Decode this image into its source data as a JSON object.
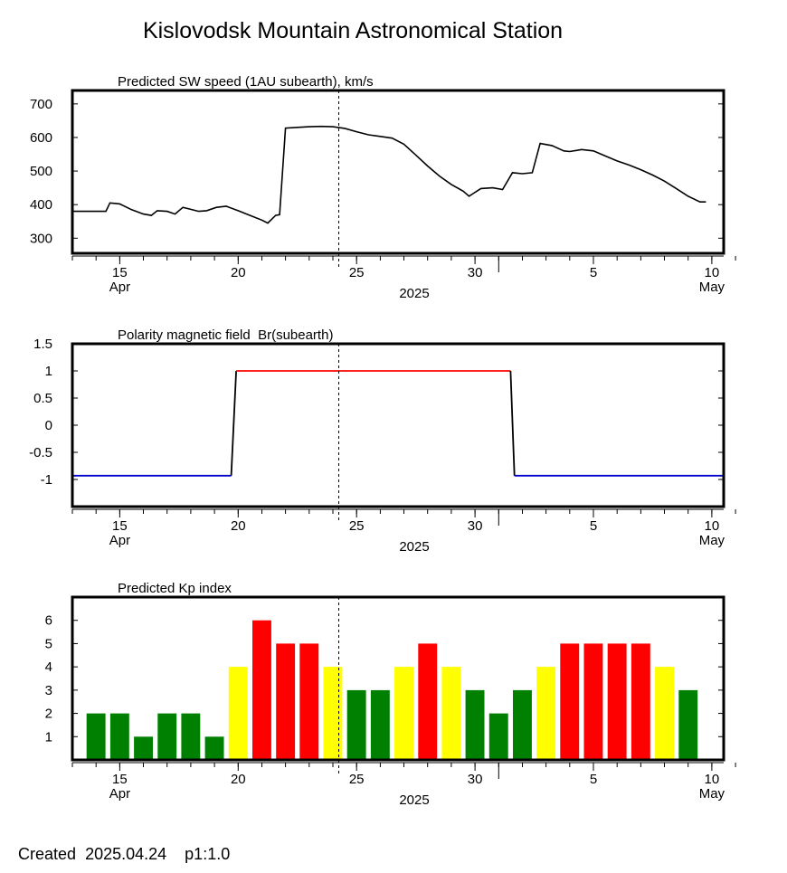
{
  "page": {
    "title": "Kislovodsk Mountain Astronomical Station",
    "footer_label": "Created",
    "footer_date": "2025.04.24",
    "footer_extra": "p1:1.0"
  },
  "colors": {
    "line": "#000000",
    "polarity_positive": "#ff0000",
    "polarity_negative": "#0000cc",
    "kp_green": "#008000",
    "kp_yellow": "#ffff00",
    "kp_red": "#ff0000"
  },
  "chart_data": [
    {
      "type": "line",
      "title": "Predicted SW speed (1AU subearth), km/s",
      "xlabel": "2025",
      "ylabel": "",
      "x_unit": "day",
      "x_range": [
        "2025-04-13T00:00",
        "2025-05-10T12:00"
      ],
      "ylim": [
        255,
        740
      ],
      "yticks": [
        "300",
        "400",
        "500",
        "600",
        "700"
      ],
      "ytick_values": [
        300,
        400,
        500,
        600,
        700
      ],
      "xticks": [
        {
          "date": "2025-04-15",
          "label": "15",
          "sub": "Apr"
        },
        {
          "date": "2025-04-20",
          "label": "20",
          "sub": ""
        },
        {
          "date": "2025-04-25",
          "label": "25",
          "sub": ""
        },
        {
          "date": "2025-04-30",
          "label": "30",
          "sub": ""
        },
        {
          "date": "2025-05-05",
          "label": "5",
          "sub": ""
        },
        {
          "date": "2025-05-10",
          "label": "10",
          "sub": "May"
        }
      ],
      "current_time": "2025-04-24T06:00",
      "series": [
        {
          "points": [
            [
              "2025-04-13T00:00",
              380
            ],
            [
              "2025-04-14T10:00",
              380
            ],
            [
              "2025-04-14T14:00",
              405
            ],
            [
              "2025-04-15T00:00",
              402
            ],
            [
              "2025-04-15T12:00",
              385
            ],
            [
              "2025-04-16T00:00",
              372
            ],
            [
              "2025-04-16T08:00",
              368
            ],
            [
              "2025-04-16T14:00",
              382
            ],
            [
              "2025-04-17T00:00",
              380
            ],
            [
              "2025-04-17T08:00",
              372
            ],
            [
              "2025-04-17T16:00",
              392
            ],
            [
              "2025-04-18T00:00",
              386
            ],
            [
              "2025-04-18T08:00",
              380
            ],
            [
              "2025-04-18T16:00",
              382
            ],
            [
              "2025-04-19T02:00",
              392
            ],
            [
              "2025-04-19T12:00",
              395
            ],
            [
              "2025-04-20T00:00",
              382
            ],
            [
              "2025-04-20T12:00",
              368
            ],
            [
              "2025-04-21T00:00",
              354
            ],
            [
              "2025-04-21T06:00",
              345
            ],
            [
              "2025-04-21T14:00",
              368
            ],
            [
              "2025-04-21T18:00",
              370
            ],
            [
              "2025-04-22T00:00",
              628
            ],
            [
              "2025-04-22T12:00",
              630
            ],
            [
              "2025-04-23T00:00",
              632
            ],
            [
              "2025-04-23T12:00",
              633
            ],
            [
              "2025-04-24T00:00",
              632
            ],
            [
              "2025-04-24T12:00",
              627
            ],
            [
              "2025-04-25T00:00",
              617
            ],
            [
              "2025-04-25T12:00",
              608
            ],
            [
              "2025-04-26T00:00",
              603
            ],
            [
              "2025-04-26T12:00",
              598
            ],
            [
              "2025-04-27T00:00",
              580
            ],
            [
              "2025-04-27T12:00",
              548
            ],
            [
              "2025-04-28T00:00",
              515
            ],
            [
              "2025-04-28T12:00",
              485
            ],
            [
              "2025-04-29T00:00",
              460
            ],
            [
              "2025-04-29T12:00",
              440
            ],
            [
              "2025-04-29T18:00",
              425
            ],
            [
              "2025-04-30T06:00",
              448
            ],
            [
              "2025-04-30T18:00",
              450
            ],
            [
              "2025-05-01T04:00",
              445
            ],
            [
              "2025-05-01T14:00",
              495
            ],
            [
              "2025-05-02T00:00",
              492
            ],
            [
              "2025-05-02T10:00",
              495
            ],
            [
              "2025-05-02T18:00",
              582
            ],
            [
              "2025-05-03T06:00",
              576
            ],
            [
              "2025-05-03T18:00",
              560
            ],
            [
              "2025-05-04T00:00",
              558
            ],
            [
              "2025-05-04T12:00",
              564
            ],
            [
              "2025-05-05T00:00",
              560
            ],
            [
              "2025-05-05T12:00",
              545
            ],
            [
              "2025-05-06T00:00",
              530
            ],
            [
              "2025-05-06T12:00",
              518
            ],
            [
              "2025-05-07T00:00",
              504
            ],
            [
              "2025-05-07T12:00",
              488
            ],
            [
              "2025-05-08T00:00",
              470
            ],
            [
              "2025-05-08T12:00",
              448
            ],
            [
              "2025-05-09T00:00",
              425
            ],
            [
              "2025-05-09T12:00",
              408
            ],
            [
              "2025-05-09T18:00",
              408
            ]
          ]
        }
      ]
    },
    {
      "type": "line",
      "title": "Polarity magnetic field  Br(subearth)",
      "xlabel": "2025",
      "ylabel": "",
      "ylim": [
        -1.5,
        1.5
      ],
      "yticks": [
        "1.5",
        "1",
        "0.5",
        "0",
        "-0.5",
        "-1"
      ],
      "ytick_values": [
        1.5,
        1,
        0.5,
        0,
        -0.5,
        -1
      ],
      "current_time": "2025-04-24T06:00",
      "series": [
        {
          "name_color": "polarity",
          "points": [
            [
              "2025-04-13T00:00",
              -0.93
            ],
            [
              "2025-04-19T17:00",
              -0.93
            ],
            [
              "2025-04-19T22:00",
              1.0
            ],
            [
              "2025-05-01T12:00",
              1.0
            ],
            [
              "2025-05-01T16:00",
              -0.93
            ],
            [
              "2025-05-10T12:00",
              -0.93
            ]
          ]
        }
      ]
    },
    {
      "type": "bar",
      "title": "Predicted Kp index",
      "xlabel": "2025",
      "ylabel": "",
      "ylim": [
        0,
        7
      ],
      "yticks": [
        "1",
        "2",
        "3",
        "4",
        "5",
        "6"
      ],
      "ytick_values": [
        1,
        2,
        3,
        4,
        5,
        6
      ],
      "current_time": "2025-04-24T06:00",
      "bars": [
        {
          "start": "2025-04-13T12:00",
          "value": 2
        },
        {
          "start": "2025-04-14T12:00",
          "value": 2
        },
        {
          "start": "2025-04-15T12:00",
          "value": 1
        },
        {
          "start": "2025-04-16T12:00",
          "value": 2
        },
        {
          "start": "2025-04-17T12:00",
          "value": 2
        },
        {
          "start": "2025-04-18T12:00",
          "value": 1
        },
        {
          "start": "2025-04-19T12:00",
          "value": 4
        },
        {
          "start": "2025-04-20T12:00",
          "value": 6
        },
        {
          "start": "2025-04-21T12:00",
          "value": 5
        },
        {
          "start": "2025-04-22T12:00",
          "value": 5
        },
        {
          "start": "2025-04-23T12:00",
          "value": 4
        },
        {
          "start": "2025-04-24T12:00",
          "value": 3
        },
        {
          "start": "2025-04-25T12:00",
          "value": 3
        },
        {
          "start": "2025-04-26T12:00",
          "value": 4
        },
        {
          "start": "2025-04-27T12:00",
          "value": 5
        },
        {
          "start": "2025-04-28T12:00",
          "value": 4
        },
        {
          "start": "2025-04-29T12:00",
          "value": 3
        },
        {
          "start": "2025-04-30T12:00",
          "value": 2
        },
        {
          "start": "2025-05-01T12:00",
          "value": 3
        },
        {
          "start": "2025-05-02T12:00",
          "value": 4
        },
        {
          "start": "2025-05-03T12:00",
          "value": 5
        },
        {
          "start": "2025-05-04T12:00",
          "value": 5
        },
        {
          "start": "2025-05-05T12:00",
          "value": 5
        },
        {
          "start": "2025-05-06T12:00",
          "value": 5
        },
        {
          "start": "2025-05-07T12:00",
          "value": 4
        },
        {
          "start": "2025-05-08T12:00",
          "value": 3
        }
      ]
    }
  ]
}
